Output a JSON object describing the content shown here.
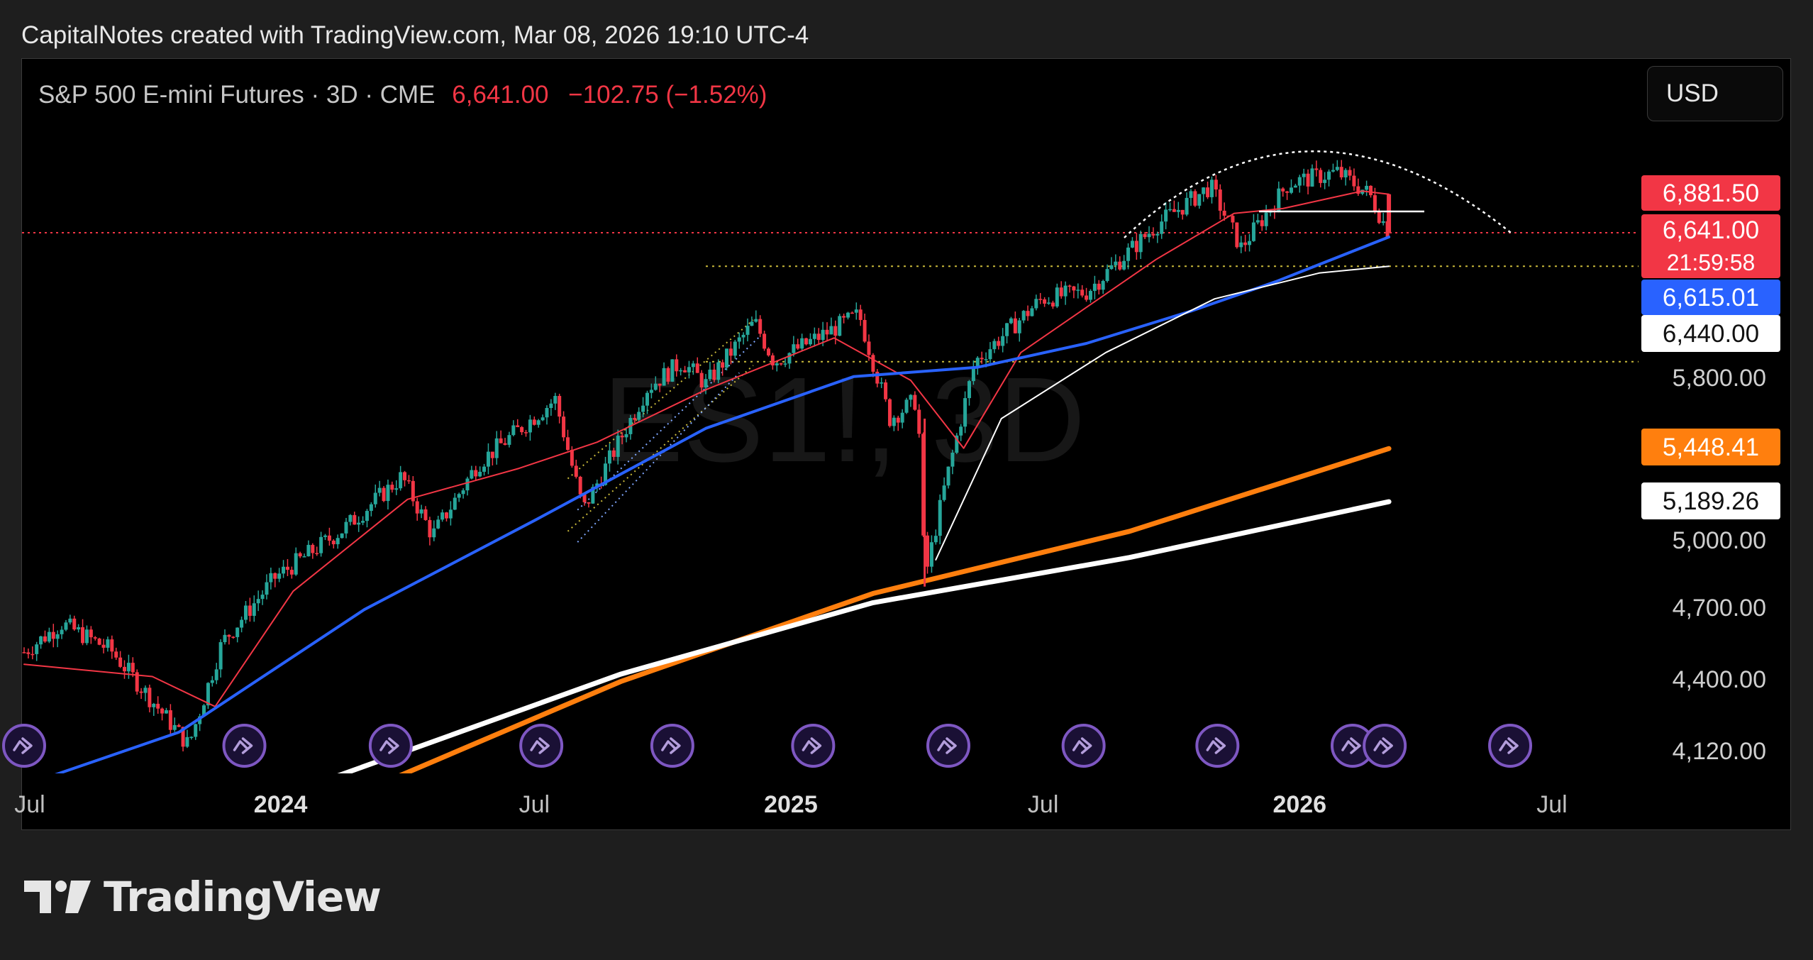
{
  "header": {
    "attribution": "CapitalNotes created with TradingView.com, Mar 08, 2026 19:10 UTC-4"
  },
  "symbol": {
    "name": "S&P 500 E-mini Futures · 3D · CME",
    "last_price": "6,641.00",
    "change": "−102.75 (−1.52%)"
  },
  "watermark": "ES1!, 3D",
  "currency_button": "USD",
  "footer": {
    "brand": "TradingView"
  },
  "colors": {
    "up": "#26a69a",
    "down": "#f23645",
    "ema_red": "#f23645",
    "ma_blue": "#2962ff",
    "ma_white_thin": "#ffffff",
    "ma_orange": "#ff7f0e",
    "ma_white_thick": "#ffffff",
    "level_yellow": "#c9b93a",
    "price_line": "#f23645"
  },
  "price_labels": [
    {
      "text": "6,881.50",
      "style": "red"
    },
    {
      "text": "6,641.00",
      "style": "red"
    },
    {
      "text": "21:59:58",
      "style": "red"
    },
    {
      "text": "6,615.01",
      "style": "blue"
    },
    {
      "text": "6,440.00",
      "style": "white"
    },
    {
      "text": "5,448.41",
      "style": "orange"
    },
    {
      "text": "5,189.26",
      "style": "white"
    }
  ],
  "chart_data": {
    "type": "candlestick",
    "title": "S&P 500 E-mini Futures · 3D · CME",
    "ylabel": "",
    "y_scale": "log",
    "y_ticks": [
      "5,800.00",
      "5,000.00",
      "4,700.00",
      "4,400.00",
      "4,120.00"
    ],
    "x_ticks": [
      {
        "date": "2023-07-01",
        "label": "Jul",
        "bold": false
      },
      {
        "date": "2024-01-01",
        "label": "2024",
        "bold": true
      },
      {
        "date": "2024-07-01",
        "label": "Jul",
        "bold": false
      },
      {
        "date": "2025-01-01",
        "label": "2025",
        "bold": true
      },
      {
        "date": "2025-07-01",
        "label": "Jul",
        "bold": false
      },
      {
        "date": "2026-01-01",
        "label": "2026",
        "bold": true
      },
      {
        "date": "2026-07-01",
        "label": "Jul",
        "bold": false
      }
    ],
    "price_path": [
      [
        "2023-07-01",
        4520
      ],
      [
        "2023-07-28",
        4640
      ],
      [
        "2023-09-01",
        4530
      ],
      [
        "2023-10-27",
        4150
      ],
      [
        "2023-11-20",
        4560
      ],
      [
        "2023-12-28",
        4840
      ],
      [
        "2024-02-15",
        5060
      ],
      [
        "2024-03-28",
        5310
      ],
      [
        "2024-04-19",
        5030
      ],
      [
        "2024-05-21",
        5370
      ],
      [
        "2024-07-16",
        5700
      ],
      [
        "2024-08-05",
        5150
      ],
      [
        "2024-09-20",
        5760
      ],
      [
        "2024-10-15",
        5900
      ],
      [
        "2024-11-01",
        5780
      ],
      [
        "2024-12-06",
        6120
      ],
      [
        "2024-12-20",
        5900
      ],
      [
        "2025-02-19",
        6160
      ],
      [
        "2025-03-13",
        5600
      ],
      [
        "2025-04-02",
        5700
      ],
      [
        "2025-04-07",
        4830
      ],
      [
        "2025-04-21",
        5250
      ],
      [
        "2025-05-13",
        5900
      ],
      [
        "2025-06-30",
        6250
      ],
      [
        "2025-08-01",
        6290
      ],
      [
        "2025-09-22",
        6700
      ],
      [
        "2025-10-29",
        6930
      ],
      [
        "2025-11-20",
        6550
      ],
      [
        "2025-12-24",
        6950
      ],
      [
        "2026-01-28",
        7020
      ],
      [
        "2026-02-20",
        6880
      ],
      [
        "2026-03-06",
        6641
      ]
    ],
    "moving_averages": [
      {
        "color": "#f23645",
        "points": [
          [
            "2023-07-01",
            4470
          ],
          [
            "2023-10-01",
            4420
          ],
          [
            "2023-11-15",
            4300
          ],
          [
            "2024-01-10",
            4780
          ],
          [
            "2024-04-01",
            5200
          ],
          [
            "2024-06-20",
            5350
          ],
          [
            "2024-08-15",
            5480
          ],
          [
            "2024-11-01",
            5750
          ],
          [
            "2025-02-01",
            6030
          ],
          [
            "2025-03-28",
            5800
          ],
          [
            "2025-05-05",
            5450
          ],
          [
            "2025-06-15",
            5950
          ],
          [
            "2025-09-20",
            6480
          ],
          [
            "2025-11-15",
            6760
          ],
          [
            "2025-12-20",
            6790
          ],
          [
            "2026-02-15",
            6900
          ],
          [
            "2026-03-06",
            6880
          ]
        ]
      },
      {
        "color": "#2962ff",
        "points": [
          [
            "2023-07-01",
            4000
          ],
          [
            "2023-10-20",
            4200
          ],
          [
            "2024-03-01",
            4700
          ],
          [
            "2024-07-01",
            5100
          ],
          [
            "2024-11-01",
            5550
          ],
          [
            "2025-02-15",
            5820
          ],
          [
            "2025-05-15",
            5870
          ],
          [
            "2025-08-01",
            6000
          ],
          [
            "2025-10-15",
            6180
          ],
          [
            "2025-12-15",
            6350
          ],
          [
            "2026-03-06",
            6615
          ]
        ]
      },
      {
        "color": "#ffffff",
        "width": 2,
        "points": [
          [
            "2025-04-15",
            4920
          ],
          [
            "2025-06-01",
            5600
          ],
          [
            "2025-08-15",
            5950
          ],
          [
            "2025-11-01",
            6250
          ],
          [
            "2026-01-15",
            6400
          ],
          [
            "2026-03-06",
            6440
          ]
        ]
      },
      {
        "color": "#ff7f0e",
        "width": 7,
        "points": [
          [
            "2024-03-01",
            3980
          ],
          [
            "2024-09-01",
            4400
          ],
          [
            "2025-03-01",
            4770
          ],
          [
            "2025-09-01",
            5050
          ],
          [
            "2026-03-06",
            5448
          ]
        ]
      },
      {
        "color": "#ffffff",
        "width": 7,
        "points": [
          [
            "2024-01-01",
            3960
          ],
          [
            "2024-09-01",
            4430
          ],
          [
            "2025-03-01",
            4730
          ],
          [
            "2025-09-01",
            4930
          ],
          [
            "2026-03-06",
            5189
          ]
        ]
      }
    ],
    "levels": [
      6440,
      5900
    ],
    "last_price": 6641,
    "events": [
      "2023-07-01",
      "2023-12-06",
      "2024-03-20",
      "2024-07-06",
      "2024-10-08",
      "2025-01-17",
      "2025-04-24",
      "2025-07-30",
      "2025-11-03",
      "2026-02-08",
      "2026-03-03",
      "2026-06-01"
    ]
  }
}
